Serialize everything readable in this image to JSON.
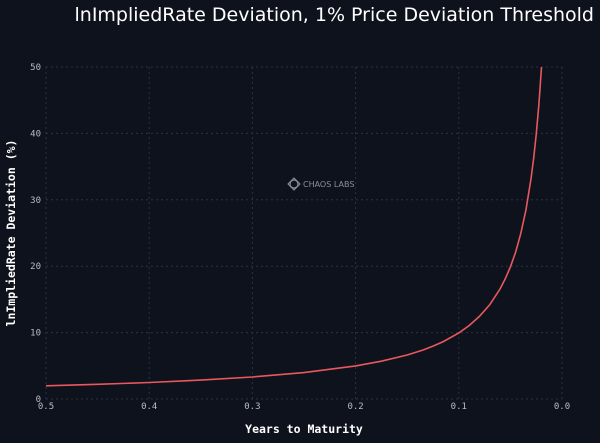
{
  "chart_data": {
    "type": "line",
    "title": "lnImpliedRate Deviation, 1% Price Deviation Threshold",
    "xlabel": "Years to Maturity",
    "ylabel": "lnImpliedRate Deviation (%)",
    "xlim": [
      0.5,
      0.0
    ],
    "x_reversed": true,
    "ylim": [
      0,
      50
    ],
    "xticks": [
      "0.5",
      "0.4",
      "0.3",
      "0.2",
      "0.1",
      "0.0"
    ],
    "yticks": [
      "0",
      "10",
      "20",
      "30",
      "40",
      "50"
    ],
    "grid": true,
    "series": [
      {
        "color": "#e8585e",
        "x": [
          0.5,
          0.45,
          0.4,
          0.35,
          0.3,
          0.25,
          0.2,
          0.175,
          0.15,
          0.135,
          0.125,
          0.115,
          0.1,
          0.09,
          0.08,
          0.07,
          0.06,
          0.055,
          0.05,
          0.045,
          0.04,
          0.035,
          0.03,
          0.0275,
          0.025,
          0.0225,
          0.0215,
          0.0199
        ],
        "y": [
          1.99,
          2.21,
          2.49,
          2.84,
          3.32,
          3.98,
          4.98,
          5.69,
          6.63,
          7.37,
          7.96,
          8.65,
          9.95,
          11.06,
          12.44,
          14.21,
          16.58,
          18.09,
          19.9,
          22.11,
          24.88,
          28.43,
          33.17,
          36.18,
          39.8,
          44.22,
          46.28,
          50.0
        ]
      }
    ]
  },
  "watermark": "CHAOS LABS"
}
